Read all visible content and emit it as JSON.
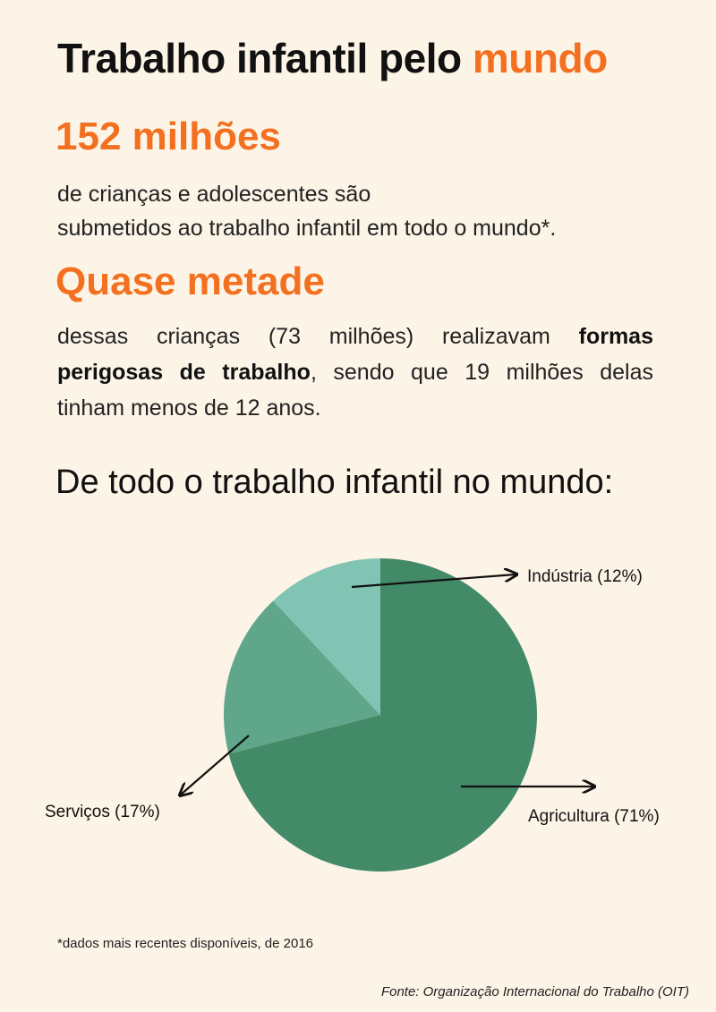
{
  "header": {
    "title_main": "Trabalho infantil pelo ",
    "title_accent": "mundo"
  },
  "stat1": {
    "value": "152 milhões",
    "line1": "de crianças e adolescentes são",
    "line2": "submetidos ao trabalho infantil em todo o mundo*."
  },
  "stat2": {
    "value": "Quase metade",
    "text_a": "dessas crianças (73 milhões) realizavam ",
    "text_bold": "formas perigosas de trabalho",
    "text_b": ", sendo que 19 milhões delas tinham menos de 12 anos."
  },
  "section_title": "De todo o trabalho infantil no mundo:",
  "chart_data": {
    "type": "pie",
    "title": "",
    "slices": [
      {
        "label": "Agricultura (71%)",
        "value": 71,
        "color": "#438a69"
      },
      {
        "label": "Serviços (17%)",
        "value": 17,
        "color": "#5fa68b"
      },
      {
        "label": "Indústria (12%)",
        "value": 12,
        "color": "#82c4b3"
      }
    ]
  },
  "footnote": "*dados mais recentes disponíveis, de 2016",
  "source": "Fonte: Organização Internacional do Trabalho (OIT)",
  "colors": {
    "accent": "#f37021",
    "background": "#fcf4e6"
  }
}
